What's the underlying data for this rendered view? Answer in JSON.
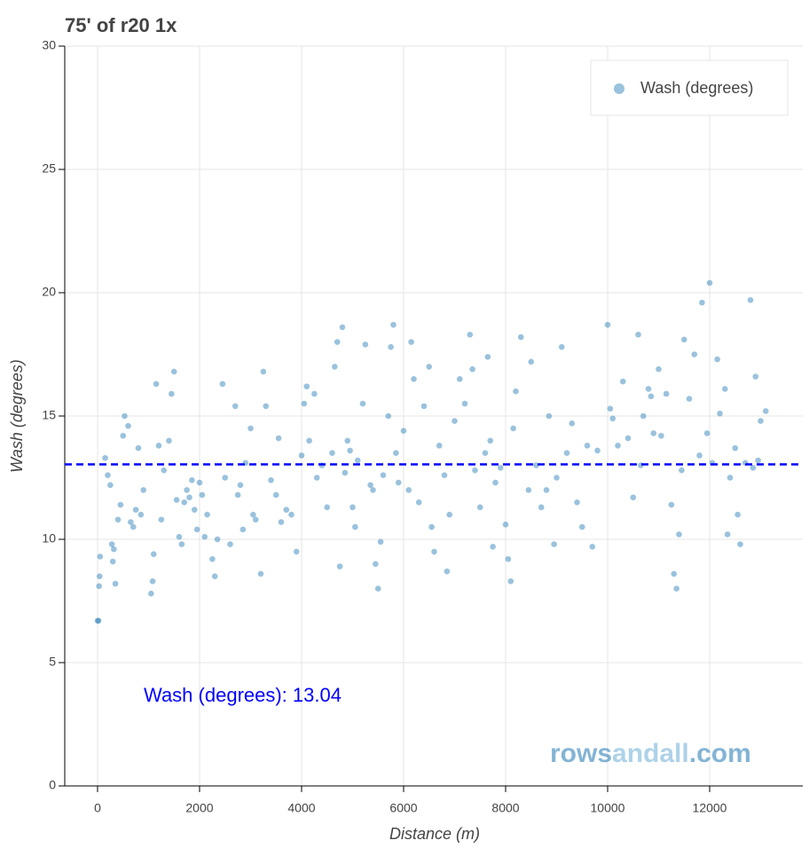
{
  "chart_data": {
    "type": "scatter",
    "title": "75' of r20 1x",
    "x_label": "Distance (m)",
    "y_label": "Wash (degrees)",
    "xlim": [
      -643,
      13826
    ],
    "ylim": [
      0,
      30
    ],
    "xticks": [
      0,
      2000,
      4000,
      6000,
      8000,
      10000,
      12000
    ],
    "yticks": [
      0,
      5,
      10,
      15,
      20,
      25,
      30
    ],
    "grid": true,
    "legend_position": "top-right",
    "series": [
      {
        "name": "Wash (degrees)",
        "color": "#1f77b4",
        "x": [
          0,
          20,
          30,
          40,
          50,
          150,
          200,
          250,
          280,
          300,
          320,
          350,
          400,
          450,
          500,
          530,
          600,
          650,
          700,
          750,
          800,
          850,
          900,
          1050,
          1080,
          1100,
          1150,
          1200,
          1250,
          1300,
          1400,
          1450,
          1500,
          1550,
          1600,
          1650,
          1700,
          1750,
          1800,
          1850,
          1900,
          1950,
          2000,
          2050,
          2100,
          2150,
          2250,
          2300,
          2350,
          2450,
          2500,
          2600,
          2700,
          2750,
          2800,
          2850,
          2900,
          3000,
          3050,
          3100,
          3200,
          3250,
          3300,
          3400,
          3500,
          3550,
          3600,
          3700,
          3800,
          3900,
          4000,
          4050,
          4100,
          4150,
          4250,
          4300,
          4400,
          4500,
          4600,
          4650,
          4700,
          4750,
          4800,
          4850,
          4900,
          4950,
          5000,
          5050,
          5100,
          5200,
          5250,
          5350,
          5400,
          5450,
          5500,
          5550,
          5600,
          5700,
          5750,
          5800,
          5850,
          5900,
          6000,
          6100,
          6150,
          6200,
          6300,
          6400,
          6500,
          6550,
          6600,
          6700,
          6800,
          6850,
          6900,
          7000,
          7100,
          7200,
          7300,
          7350,
          7400,
          7500,
          7600,
          7650,
          7700,
          7750,
          7800,
          7900,
          8000,
          8050,
          8100,
          8150,
          8200,
          8300,
          8450,
          8500,
          8600,
          8700,
          8800,
          8850,
          8950,
          9000,
          9100,
          9200,
          9300,
          9400,
          9500,
          9600,
          9700,
          9800,
          10000,
          10050,
          10100,
          10200,
          10300,
          10400,
          10500,
          10600,
          10650,
          10700,
          10800,
          10850,
          10900,
          11000,
          11050,
          11150,
          11250,
          11300,
          11350,
          11400,
          11450,
          11500,
          11600,
          11700,
          11800,
          11850,
          11950,
          12000,
          12050,
          12150,
          12200,
          12300,
          12350,
          12400,
          12500,
          12550,
          12600,
          12700,
          12800,
          12850,
          12900,
          12950,
          13000,
          13100
        ],
        "values": [
          6.7,
          6.7,
          8.1,
          8.5,
          9.3,
          13.3,
          12.6,
          12.2,
          9.8,
          9.1,
          9.6,
          8.2,
          10.8,
          11.4,
          14.2,
          15.0,
          14.6,
          10.7,
          10.5,
          11.2,
          13.7,
          11.0,
          12.0,
          7.8,
          8.3,
          9.4,
          16.3,
          13.8,
          10.8,
          12.8,
          14.0,
          15.9,
          16.8,
          11.6,
          10.1,
          9.8,
          11.5,
          12.0,
          11.7,
          12.4,
          11.2,
          10.4,
          12.3,
          11.8,
          10.1,
          11.0,
          9.2,
          8.5,
          10.0,
          16.3,
          12.5,
          9.8,
          15.4,
          11.8,
          12.2,
          10.4,
          13.1,
          14.5,
          11.0,
          10.8,
          8.6,
          16.8,
          15.4,
          12.4,
          11.8,
          14.1,
          10.7,
          11.2,
          11.0,
          9.5,
          13.4,
          15.5,
          16.2,
          14.0,
          15.9,
          12.5,
          13.0,
          11.3,
          13.5,
          17.0,
          18.0,
          8.9,
          18.6,
          12.7,
          14.0,
          13.6,
          11.3,
          10.5,
          13.2,
          15.5,
          17.9,
          12.2,
          12.0,
          9.0,
          8.0,
          9.9,
          12.6,
          15.0,
          17.8,
          18.7,
          13.5,
          12.3,
          14.4,
          12.0,
          18.0,
          16.5,
          11.5,
          15.4,
          17.0,
          10.5,
          9.5,
          13.8,
          12.6,
          8.7,
          11.0,
          14.8,
          16.5,
          15.5,
          18.3,
          16.9,
          12.8,
          11.3,
          13.5,
          17.4,
          14.0,
          9.7,
          12.3,
          12.9,
          10.6,
          9.2,
          8.3,
          14.5,
          16.0,
          18.2,
          12.0,
          17.2,
          13.0,
          11.3,
          12.0,
          15.0,
          9.8,
          12.5,
          17.8,
          13.5,
          14.7,
          11.5,
          10.5,
          13.8,
          9.7,
          13.6,
          18.7,
          15.3,
          14.9,
          13.8,
          16.4,
          14.1,
          11.7,
          18.3,
          13.0,
          15.0,
          16.1,
          15.8,
          14.3,
          16.9,
          14.2,
          15.9,
          11.4,
          8.6,
          8.0,
          10.2,
          12.8,
          18.1,
          15.7,
          17.5,
          13.4,
          19.6,
          14.3,
          20.4,
          13.1,
          17.3,
          15.1,
          16.1,
          10.2,
          12.5,
          13.7,
          11.0,
          9.8,
          13.1,
          19.7,
          12.9,
          16.6,
          13.2,
          14.8,
          15.2
        ]
      }
    ],
    "reference_line": {
      "value": 13.04,
      "color": "#0000ff"
    },
    "annotation": "Wash (degrees): 13.04",
    "watermark": [
      "rows",
      "andall",
      ".com"
    ]
  }
}
